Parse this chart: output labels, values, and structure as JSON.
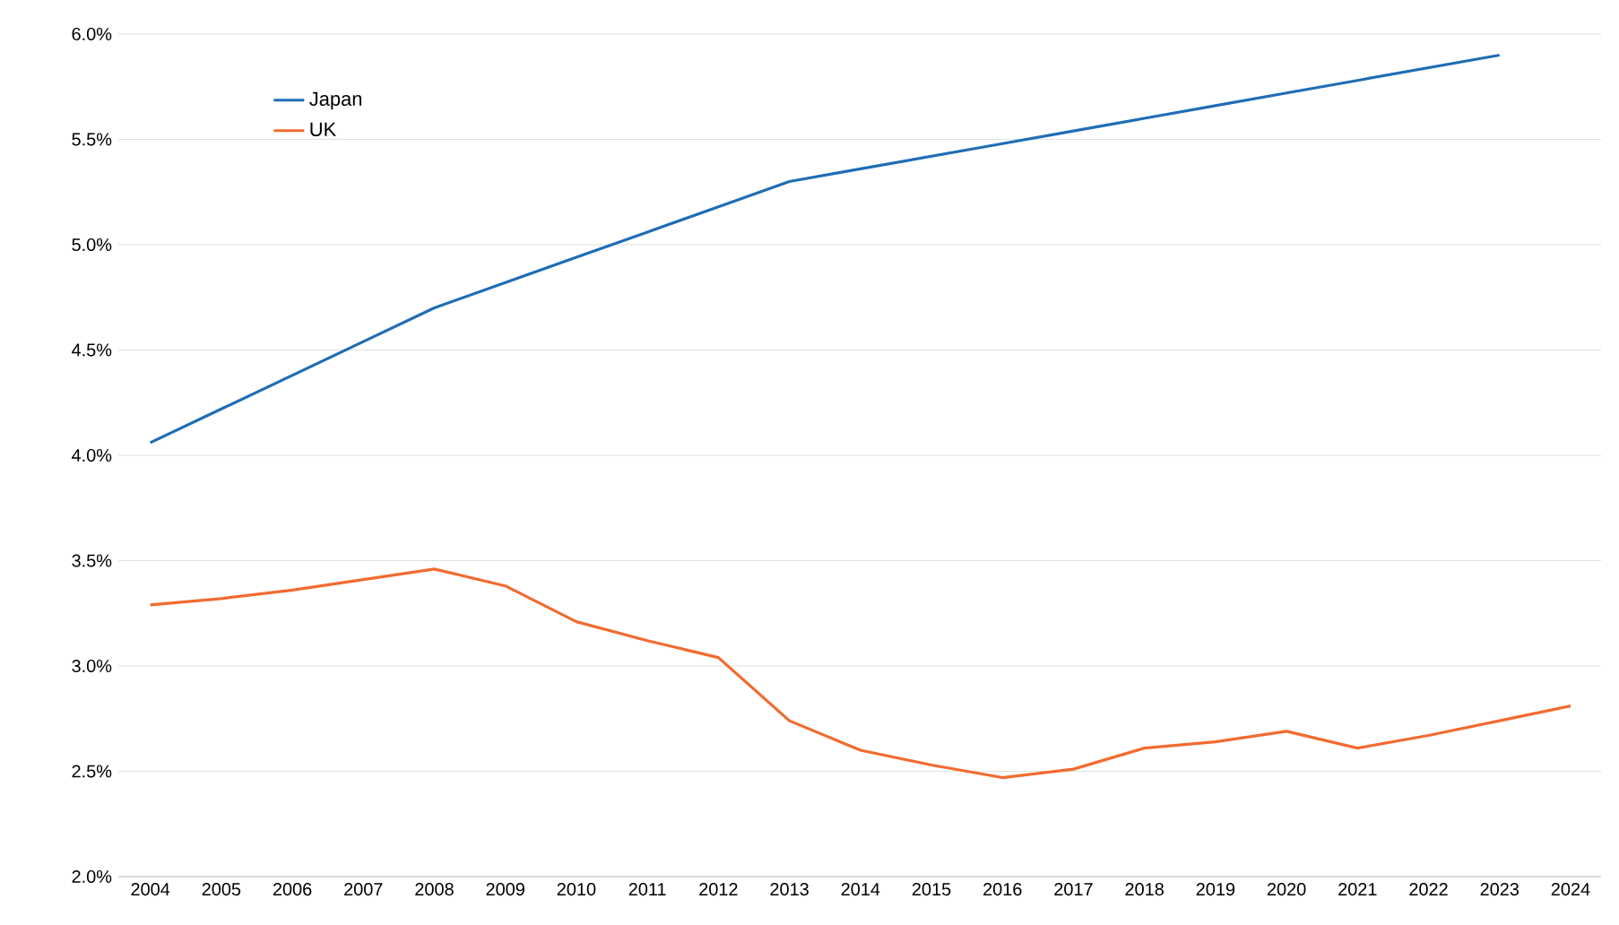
{
  "chart_data": {
    "type": "line",
    "categories": [
      "2004",
      "2005",
      "2006",
      "2007",
      "2008",
      "2009",
      "2010",
      "2011",
      "2012",
      "2013",
      "2014",
      "2015",
      "2016",
      "2017",
      "2018",
      "2019",
      "2020",
      "2021",
      "2022",
      "2023",
      "2024"
    ],
    "series": [
      {
        "name": "Japan",
        "color": "#1f6db5",
        "values": [
          4.06,
          4.22,
          4.38,
          4.54,
          4.7,
          4.82,
          4.94,
          5.06,
          5.18,
          5.3,
          5.36,
          5.42,
          5.48,
          5.54,
          5.6,
          5.66,
          5.72,
          5.78,
          5.84,
          5.9,
          null
        ]
      },
      {
        "name": "UK",
        "color": "#f26b2f",
        "values": [
          3.29,
          3.32,
          3.36,
          3.41,
          3.46,
          3.38,
          3.21,
          3.12,
          3.04,
          2.74,
          2.6,
          2.53,
          2.47,
          2.51,
          2.61,
          2.64,
          2.69,
          2.61,
          2.67,
          2.74,
          2.81
        ]
      }
    ],
    "ylim": [
      2.0,
      6.0
    ],
    "yticks": [
      {
        "value": 2.0,
        "label": "2.0%"
      },
      {
        "value": 2.5,
        "label": "2.5%"
      },
      {
        "value": 3.0,
        "label": "3.0%"
      },
      {
        "value": 3.5,
        "label": "3.5%"
      },
      {
        "value": 4.0,
        "label": "4.0%"
      },
      {
        "value": 4.5,
        "label": "4.5%"
      },
      {
        "value": 5.0,
        "label": "5.0%"
      },
      {
        "value": 5.5,
        "label": "5.5%"
      },
      {
        "value": 6.0,
        "label": "6.0%"
      }
    ],
    "grid": "y",
    "legend": "top left",
    "marker": "none",
    "line_style": "solid"
  }
}
